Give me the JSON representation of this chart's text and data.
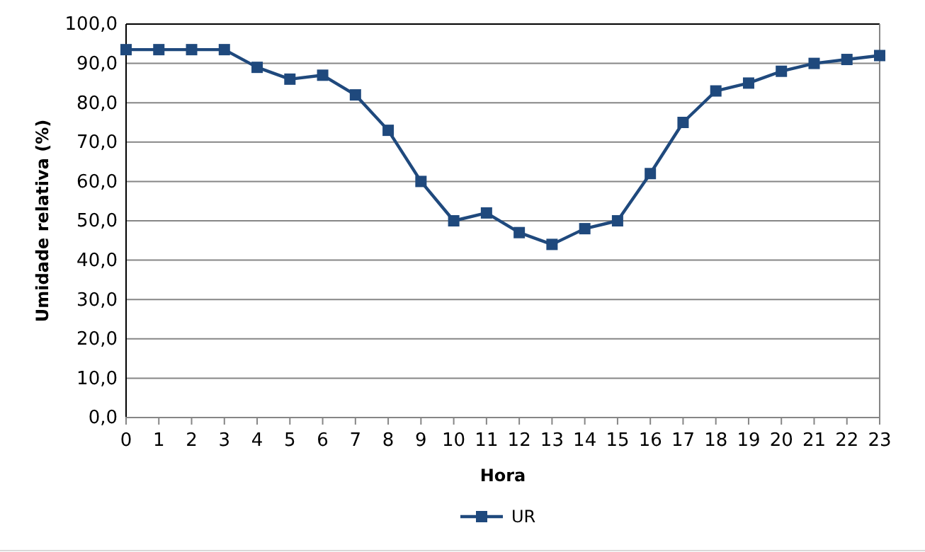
{
  "chart_data": {
    "type": "line",
    "xlabel": "Hora",
    "ylabel": "Umidade relativa (%)",
    "x": [
      0,
      1,
      2,
      3,
      4,
      5,
      6,
      7,
      8,
      9,
      10,
      11,
      12,
      13,
      14,
      15,
      16,
      17,
      18,
      19,
      20,
      21,
      22,
      23
    ],
    "series": [
      {
        "name": "UR",
        "color": "#1f497d",
        "values": [
          93.5,
          93.5,
          93.5,
          93.5,
          89,
          86,
          87,
          82,
          73,
          60,
          50,
          52,
          47,
          44,
          48,
          50,
          62,
          75,
          83,
          85,
          88,
          90,
          91,
          92
        ]
      }
    ],
    "xlim": [
      0,
      23
    ],
    "xticks": [
      0,
      1,
      2,
      3,
      4,
      5,
      6,
      7,
      8,
      9,
      10,
      11,
      12,
      13,
      14,
      15,
      16,
      17,
      18,
      19,
      20,
      21,
      22,
      23
    ],
    "ylim": [
      0,
      100
    ],
    "yticks": [
      {
        "value": 0,
        "label": "0,0"
      },
      {
        "value": 10,
        "label": "10,0"
      },
      {
        "value": 20,
        "label": "20,0"
      },
      {
        "value": 30,
        "label": "30,0"
      },
      {
        "value": 40,
        "label": "40,0"
      },
      {
        "value": 50,
        "label": "50,0"
      },
      {
        "value": 60,
        "label": "60,0"
      },
      {
        "value": 70,
        "label": "70,0"
      },
      {
        "value": 80,
        "label": "80,0"
      },
      {
        "value": 90,
        "label": "90,0"
      },
      {
        "value": 100,
        "label": "100,0"
      }
    ],
    "grid": "y",
    "legend": "bottom",
    "marker": "square",
    "line_style": "solid"
  }
}
